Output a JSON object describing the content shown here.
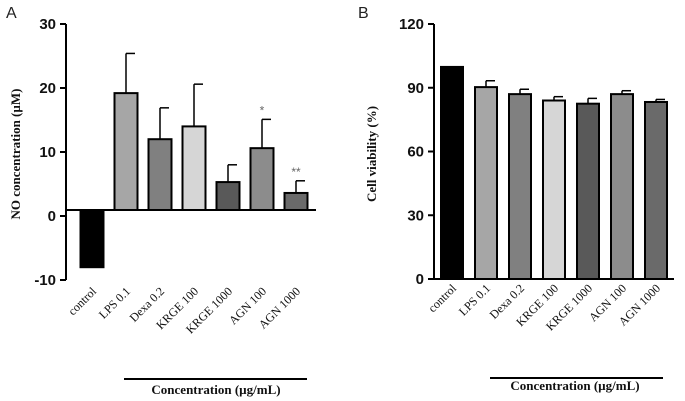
{
  "chart_data": [
    {
      "type": "bar",
      "panel": "A",
      "title": "",
      "xlabel": "Concentration (µg/mL)",
      "ylabel": "NO concentration (µM)",
      "ylim": [
        -10,
        30
      ],
      "yticks": [
        -10,
        0,
        10,
        20,
        30
      ],
      "ytick_labels": [
        "-10",
        "0",
        "10",
        "20",
        "30"
      ],
      "grid": false,
      "categories": [
        "control",
        "LPS 0.1",
        "Dexa 0.2",
        "KRGE 100",
        "KRGE 1000",
        "AGN 100",
        "AGN 1000"
      ],
      "values": [
        -8.0,
        19.2,
        12.0,
        14.0,
        5.3,
        10.6,
        3.6
      ],
      "errors": [
        0,
        6.2,
        4.9,
        6.6,
        2.7,
        4.5,
        1.9
      ],
      "significance": [
        "",
        "",
        "",
        "",
        "",
        "*",
        "**"
      ],
      "bar_colors": [
        "#000000",
        "#a6a6a6",
        "#808080",
        "#d6d6d6",
        "#595959",
        "#8c8c8c",
        "#6a6a6a"
      ]
    },
    {
      "type": "bar",
      "panel": "B",
      "title": "",
      "xlabel": "Concentration (µg/mL)",
      "ylabel": "Cell viability (%)",
      "ylim": [
        0,
        120
      ],
      "yticks": [
        0,
        30,
        60,
        90,
        120
      ],
      "ytick_labels": [
        "0",
        "30",
        "60",
        "90",
        "120"
      ],
      "grid": false,
      "categories": [
        "control",
        "LPS 0.1",
        "Dexa 0.2",
        "KRGE 100",
        "KRGE 1000",
        "AGN 100",
        "AGN 1000"
      ],
      "values": [
        99.8,
        90.3,
        87.0,
        84.0,
        82.5,
        87.0,
        83.3
      ],
      "errors": [
        0,
        3.0,
        2.3,
        1.8,
        2.5,
        1.6,
        1.2
      ],
      "significance": [
        "",
        "",
        "",
        "",
        "",
        "",
        ""
      ],
      "bar_colors": [
        "#000000",
        "#a6a6a6",
        "#808080",
        "#d6d6d6",
        "#595959",
        "#8c8c8c",
        "#6a6a6a"
      ]
    }
  ]
}
